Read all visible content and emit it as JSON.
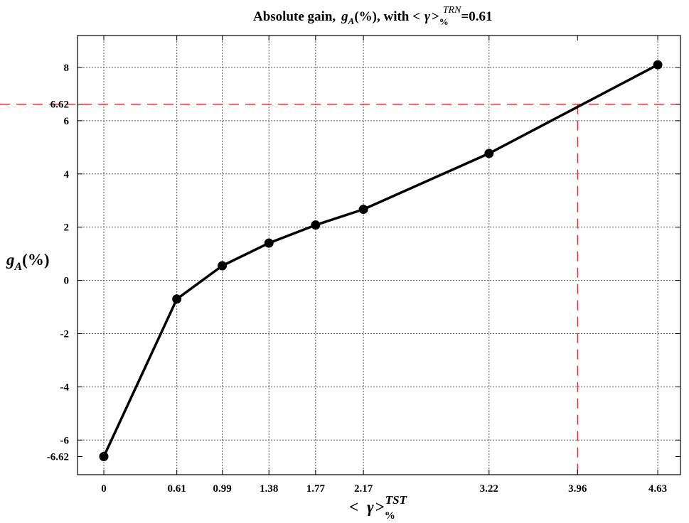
{
  "chart_data": {
    "type": "line",
    "title": {
      "prefix": "Absolute gain,",
      "var": "g",
      "var_sub": "A",
      "unit": "(%)",
      "mid": ", with <",
      "gamma": "γ",
      "close": ">",
      "sub": "%",
      "sup": "TRN",
      "value": "=0.61"
    },
    "xlabel": {
      "open": "<",
      "gamma": "γ",
      "close": ">",
      "sub": "%",
      "sup": "TST"
    },
    "ylabel": {
      "var": "g",
      "sub": "A",
      "unit": "(%)"
    },
    "x": [
      0,
      0.61,
      0.99,
      1.38,
      1.77,
      2.17,
      3.22,
      4.63
    ],
    "y": [
      -6.62,
      -0.7,
      0.55,
      1.4,
      2.08,
      2.67,
      4.77,
      8.1
    ],
    "xlim": [
      -0.22,
      4.82
    ],
    "ylim": [
      -7.3,
      9.2
    ],
    "x_ticks": [
      0,
      0.61,
      0.99,
      1.38,
      1.77,
      2.17,
      3.22,
      3.96,
      4.63
    ],
    "x_tick_labels": [
      "0",
      "0.61",
      "0.99",
      "1.38",
      "1.77",
      "2.17",
      "3.22",
      "3.96",
      "4.63"
    ],
    "y_ticks": [
      -6.62,
      -6,
      -4,
      -2,
      0,
      2,
      4,
      6,
      6.62,
      8
    ],
    "y_tick_labels": [
      "-6.62",
      "-6",
      "-4",
      "-2",
      "0",
      "2",
      "4",
      "6",
      "6.62",
      "8"
    ],
    "x_grid": [
      0,
      0.61,
      0.99,
      1.38,
      1.77,
      2.17,
      3.22,
      4.63
    ],
    "y_grid": [
      -6,
      -4,
      -2,
      0,
      2,
      4,
      6,
      8
    ],
    "grid": true,
    "reference_lines": {
      "y": 6.62,
      "x": 3.96,
      "color": "#d62728"
    },
    "colors": {
      "line": "#000000",
      "marker": "#000000",
      "grid": "#555555"
    }
  }
}
